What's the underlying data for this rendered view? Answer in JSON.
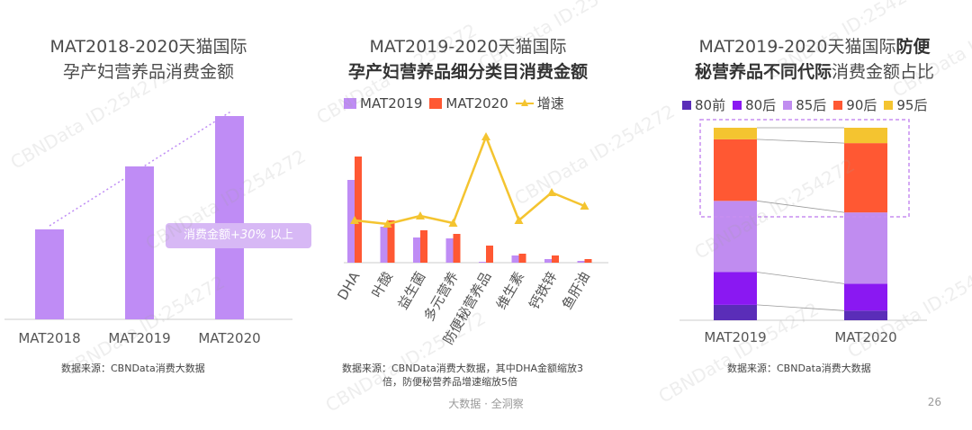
{
  "footer": {
    "text": "大数据 · 全洞察",
    "page_number": "26"
  },
  "watermark": "CBNData ID:254272",
  "colors": {
    "purple_light": "#bf8cf5",
    "orange_red": "#ff5833",
    "yellow": "#f4c430",
    "dark_purple": "#5a2db8",
    "violet": "#8a18f2",
    "lavender": "#c08cf0",
    "grid": "#cccccc"
  },
  "panel1": {
    "title_line1": "MAT2018-2020天猫国际",
    "title_line2": "孕产妇营养品消费金额",
    "badge_prefix": "消费金额",
    "badge_value": "+30%",
    "badge_suffix": " 以上",
    "source": "数据来源：CBNData消费大数据",
    "chart_data": {
      "type": "bar",
      "title": "MAT2018-2020天猫国际孕产妇营养品消费金额",
      "categories": [
        "MAT2018",
        "MAT2019",
        "MAT2020"
      ],
      "values": [
        100,
        170,
        226
      ],
      "ylim": [
        0,
        240
      ],
      "grid": false,
      "trend_line": true
    }
  },
  "panel2": {
    "title_line1": "MAT2019-2020天猫国际",
    "title_line2": "孕产妇营养品细分类目消费金额",
    "source_line1": "数据来源：CBNData消费大数据，其中DHA金额缩放3",
    "source_line2": "倍，防便秘营养品增速缩放5倍",
    "chart_data": {
      "type": "bar",
      "title": "MAT2019-2020天猫国际孕产妇营养品细分类目消费金额",
      "categories": [
        "DHA",
        "叶酸",
        "益生菌",
        "多元营养",
        "防便秘营养品",
        "维生素",
        "钙铁锌",
        "鱼肝油"
      ],
      "series": [
        {
          "name": "MAT2019",
          "type": "bar",
          "values": [
            92,
            40,
            28,
            27,
            1,
            8,
            4,
            2
          ]
        },
        {
          "name": "MAT2020",
          "type": "bar",
          "values": [
            118,
            47,
            36,
            32,
            19,
            10,
            8,
            4
          ]
        },
        {
          "name": "增速",
          "type": "line",
          "values": [
            47,
            43,
            52,
            44,
            140,
            47,
            78,
            63
          ]
        }
      ],
      "ylim": [
        0,
        150
      ],
      "legend": "top",
      "grid": false
    }
  },
  "panel3": {
    "title_line1_normal": "MAT2019-2020天猫国际",
    "title_line1_bold": "防便",
    "title_line2_bold": "秘营养品不同代际",
    "title_line2_normal": "消费金额占比",
    "source": "数据来源：CBNData消费大数据",
    "chart_data": {
      "type": "bar",
      "stacked": true,
      "title": "MAT2019-2020天猫国际防便秘营养品不同代际消费金额占比",
      "categories": [
        "MAT2019",
        "MAT2020"
      ],
      "series": [
        {
          "name": "80前",
          "values": [
            0.08,
            0.05
          ]
        },
        {
          "name": "80后",
          "values": [
            0.17,
            0.14
          ]
        },
        {
          "name": "85后",
          "values": [
            0.37,
            0.37
          ]
        },
        {
          "name": "90后",
          "values": [
            0.32,
            0.36
          ]
        },
        {
          "name": "95后",
          "values": [
            0.06,
            0.08
          ]
        }
      ],
      "ylim": [
        0,
        1
      ],
      "legend": "top",
      "grid": false
    }
  }
}
